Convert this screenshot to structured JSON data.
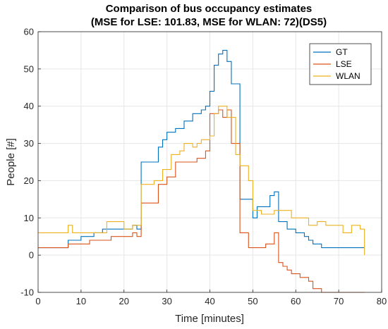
{
  "chart_data": {
    "type": "line",
    "step": true,
    "title_line1": "Comparison of bus occupancy estimates",
    "title_line2": "(MSE for LSE: 101.83, MSE for WLAN: 72)(DS5)",
    "xlabel": "Time [minutes]",
    "ylabel": "People [#]",
    "xlim": [
      0,
      80
    ],
    "ylim": [
      -10,
      60
    ],
    "xticks": [
      0,
      10,
      20,
      30,
      40,
      50,
      60,
      70,
      80
    ],
    "yticks": [
      -10,
      0,
      10,
      20,
      30,
      40,
      50,
      60
    ],
    "grid": true,
    "legend_position": "top-right",
    "series": [
      {
        "name": "GT",
        "color": "#0072BD",
        "x": [
          0,
          7,
          10,
          13,
          15,
          20,
          22,
          23,
          24,
          28,
          29,
          30,
          32,
          34,
          36,
          38,
          39,
          40,
          41,
          42,
          43,
          44,
          45,
          46,
          47,
          48,
          49,
          50,
          51,
          52,
          54,
          55,
          56,
          58,
          60,
          62,
          63,
          64,
          66,
          76
        ],
        "y": [
          2,
          4,
          5,
          6,
          7,
          7,
          8,
          7,
          25,
          29,
          31,
          33,
          34,
          36,
          38,
          39,
          40,
          44,
          51,
          54,
          55,
          52,
          46,
          46,
          15,
          15,
          15,
          10,
          13,
          13,
          16,
          17,
          9,
          7,
          6,
          5,
          4,
          3,
          2,
          2
        ]
      },
      {
        "name": "LSE",
        "color": "#D95319",
        "x": [
          0,
          7,
          12,
          14,
          17,
          20,
          22,
          23,
          24,
          28,
          30,
          32,
          35,
          36,
          37,
          39,
          40,
          42,
          43,
          44,
          45,
          47,
          48,
          49,
          50,
          53,
          55,
          56,
          57,
          58,
          59,
          61,
          63,
          64,
          66,
          68,
          70,
          72,
          76
        ],
        "y": [
          2,
          3,
          4,
          4,
          5,
          5,
          6,
          5,
          14,
          19,
          21,
          25,
          25,
          25,
          26,
          28,
          38,
          39,
          37,
          39,
          30,
          6,
          6,
          2,
          2,
          3,
          6,
          -2,
          -3,
          -4,
          -5,
          -6,
          -7,
          -9,
          -10,
          -10,
          -10,
          -10,
          -10
        ]
      },
      {
        "name": "WLAN",
        "color": "#EDB120",
        "x": [
          0,
          7,
          8,
          13,
          15,
          16,
          19,
          20,
          22,
          23,
          24,
          27,
          29,
          31,
          33,
          34,
          35,
          36,
          37,
          38,
          40,
          41,
          42,
          44,
          46,
          47,
          49,
          50,
          52,
          55,
          59,
          63,
          65,
          67,
          69,
          71,
          73,
          75,
          76
        ],
        "y": [
          6,
          8,
          6,
          6,
          6,
          9,
          9,
          7,
          8,
          8,
          19,
          20,
          23,
          27,
          28,
          30,
          30,
          29,
          30,
          31,
          32,
          38,
          40,
          37,
          27,
          24,
          20,
          12,
          11,
          12,
          10,
          8,
          9,
          8,
          8,
          6,
          8,
          7,
          0
        ]
      }
    ]
  }
}
